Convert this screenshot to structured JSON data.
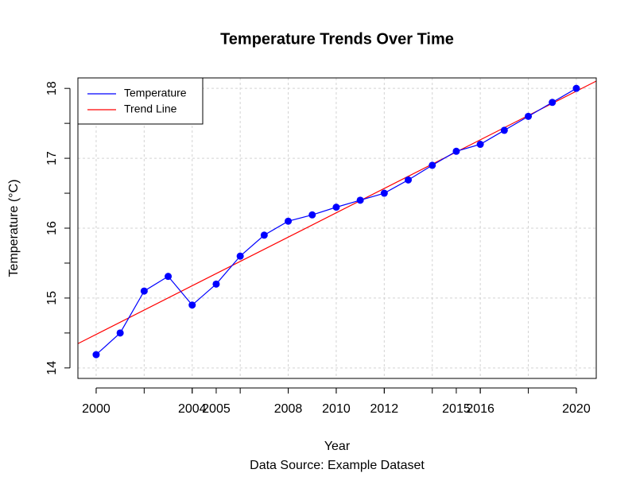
{
  "chart_data": {
    "type": "line",
    "title": "Temperature Trends Over Time",
    "x_label": "Year",
    "y_label": "Temperature (°C)",
    "subtitle": "Data Source: Example Dataset",
    "x": [
      2000,
      2001,
      2002,
      2003,
      2004,
      2005,
      2006,
      2007,
      2008,
      2009,
      2010,
      2011,
      2012,
      2013,
      2014,
      2015,
      2016,
      2017,
      2018,
      2019,
      2020
    ],
    "series": [
      {
        "name": "Temperature",
        "color": "#0000ff",
        "values": [
          14.19,
          14.5,
          15.1,
          15.31,
          14.9,
          15.2,
          15.6,
          15.9,
          16.1,
          16.19,
          16.3,
          16.4,
          16.5,
          16.69,
          16.9,
          17.1,
          17.2,
          17.4,
          17.6,
          17.8,
          18.0
        ]
      },
      {
        "name": "Trend Line",
        "color": "#ff0000",
        "x": [
          2000,
          2020
        ],
        "values": [
          14.48,
          17.96
        ]
      }
    ],
    "xlim": [
      1999.24,
      2020.83
    ],
    "ylim": [
      13.85,
      18.15
    ],
    "xticks": [
      2000,
      2004,
      2005,
      2008,
      2010,
      2012,
      2015,
      2016,
      2020
    ],
    "xminorticks": [
      2000,
      2002,
      2004,
      2006,
      2008,
      2010,
      2012,
      2014,
      2016,
      2018,
      2020
    ],
    "yticks": [
      14,
      15,
      16,
      17,
      18
    ],
    "yminorticks": [
      14.5,
      15.5,
      16.5,
      17.5
    ],
    "grid": true,
    "legend": "top-left"
  }
}
